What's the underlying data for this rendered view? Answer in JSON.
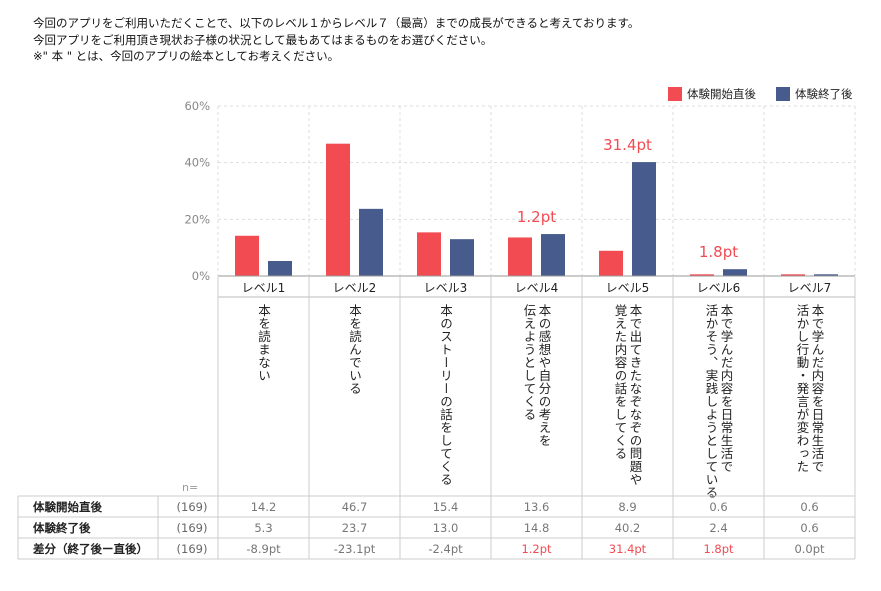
{
  "intro": {
    "line1": "今回のアプリをご利用いただくことで、以下のレベル１からレベル７（最高）までの成長ができると考えております。",
    "line2": "今回アプリをご利用頂き現状お子様の状況として最もあてはまるものをお選びください。",
    "line3": "※\" 本 \" とは、今回のアプリの絵本としてお考えください。"
  },
  "colors": {
    "before": "#f24b52",
    "after": "#475b8c",
    "highlight": "#f24b52",
    "grid": "#dddddd",
    "axis_text": "#888888"
  },
  "chart_data": {
    "type": "bar",
    "categories": [
      "レベル1",
      "レベル2",
      "レベル3",
      "レベル4",
      "レベル5",
      "レベル6",
      "レベル7"
    ],
    "descriptions": [
      [
        "本を読まない"
      ],
      [
        "本を読んでいる"
      ],
      [
        "本のストーリーの話をしてくる"
      ],
      [
        "本の感想や自分の考えを",
        "伝えようとしてくる"
      ],
      [
        "本で出てきたなぞなぞの問題や",
        "覚えた内容の話をしてくる"
      ],
      [
        "本で学んだ内容を日常生活で",
        "活かそう、実践しようとしている"
      ],
      [
        "本で学んだ内容を日常生活で",
        "活かし行動・発言が変わった"
      ]
    ],
    "series": [
      {
        "name": "体験開始直後",
        "values": [
          14.2,
          46.7,
          15.4,
          13.6,
          8.9,
          0.6,
          0.6
        ]
      },
      {
        "name": "体験終了後",
        "values": [
          5.3,
          23.7,
          13.0,
          14.8,
          40.2,
          2.4,
          0.6
        ]
      }
    ],
    "ylim": [
      0,
      60
    ],
    "yticks": [
      "0%",
      "20%",
      "40%",
      "60%"
    ],
    "grid": true,
    "legend_position": "top-right",
    "annotations": [
      {
        "category_index": 3,
        "text": "1.2pt"
      },
      {
        "category_index": 4,
        "text": "31.4pt"
      },
      {
        "category_index": 5,
        "text": "1.8pt"
      }
    ]
  },
  "table": {
    "n_label": "n=",
    "rows": [
      {
        "label": "体験開始直後",
        "n": "(169)",
        "values": [
          "14.2",
          "46.7",
          "15.4",
          "13.6",
          "8.9",
          "0.6",
          "0.6"
        ],
        "highlight": [
          false,
          false,
          false,
          false,
          false,
          false,
          false
        ]
      },
      {
        "label": "体験終了後",
        "n": "(169)",
        "values": [
          "5.3",
          "23.7",
          "13.0",
          "14.8",
          "40.2",
          "2.4",
          "0.6"
        ],
        "highlight": [
          false,
          false,
          false,
          false,
          false,
          false,
          false
        ]
      },
      {
        "label": "差分（終了後ー直後）",
        "n": "(169)",
        "values": [
          "-8.9pt",
          "-23.1pt",
          "-2.4pt",
          "1.2pt",
          "31.4pt",
          "1.8pt",
          "0.0pt"
        ],
        "highlight": [
          false,
          false,
          false,
          true,
          true,
          true,
          false
        ]
      }
    ]
  }
}
